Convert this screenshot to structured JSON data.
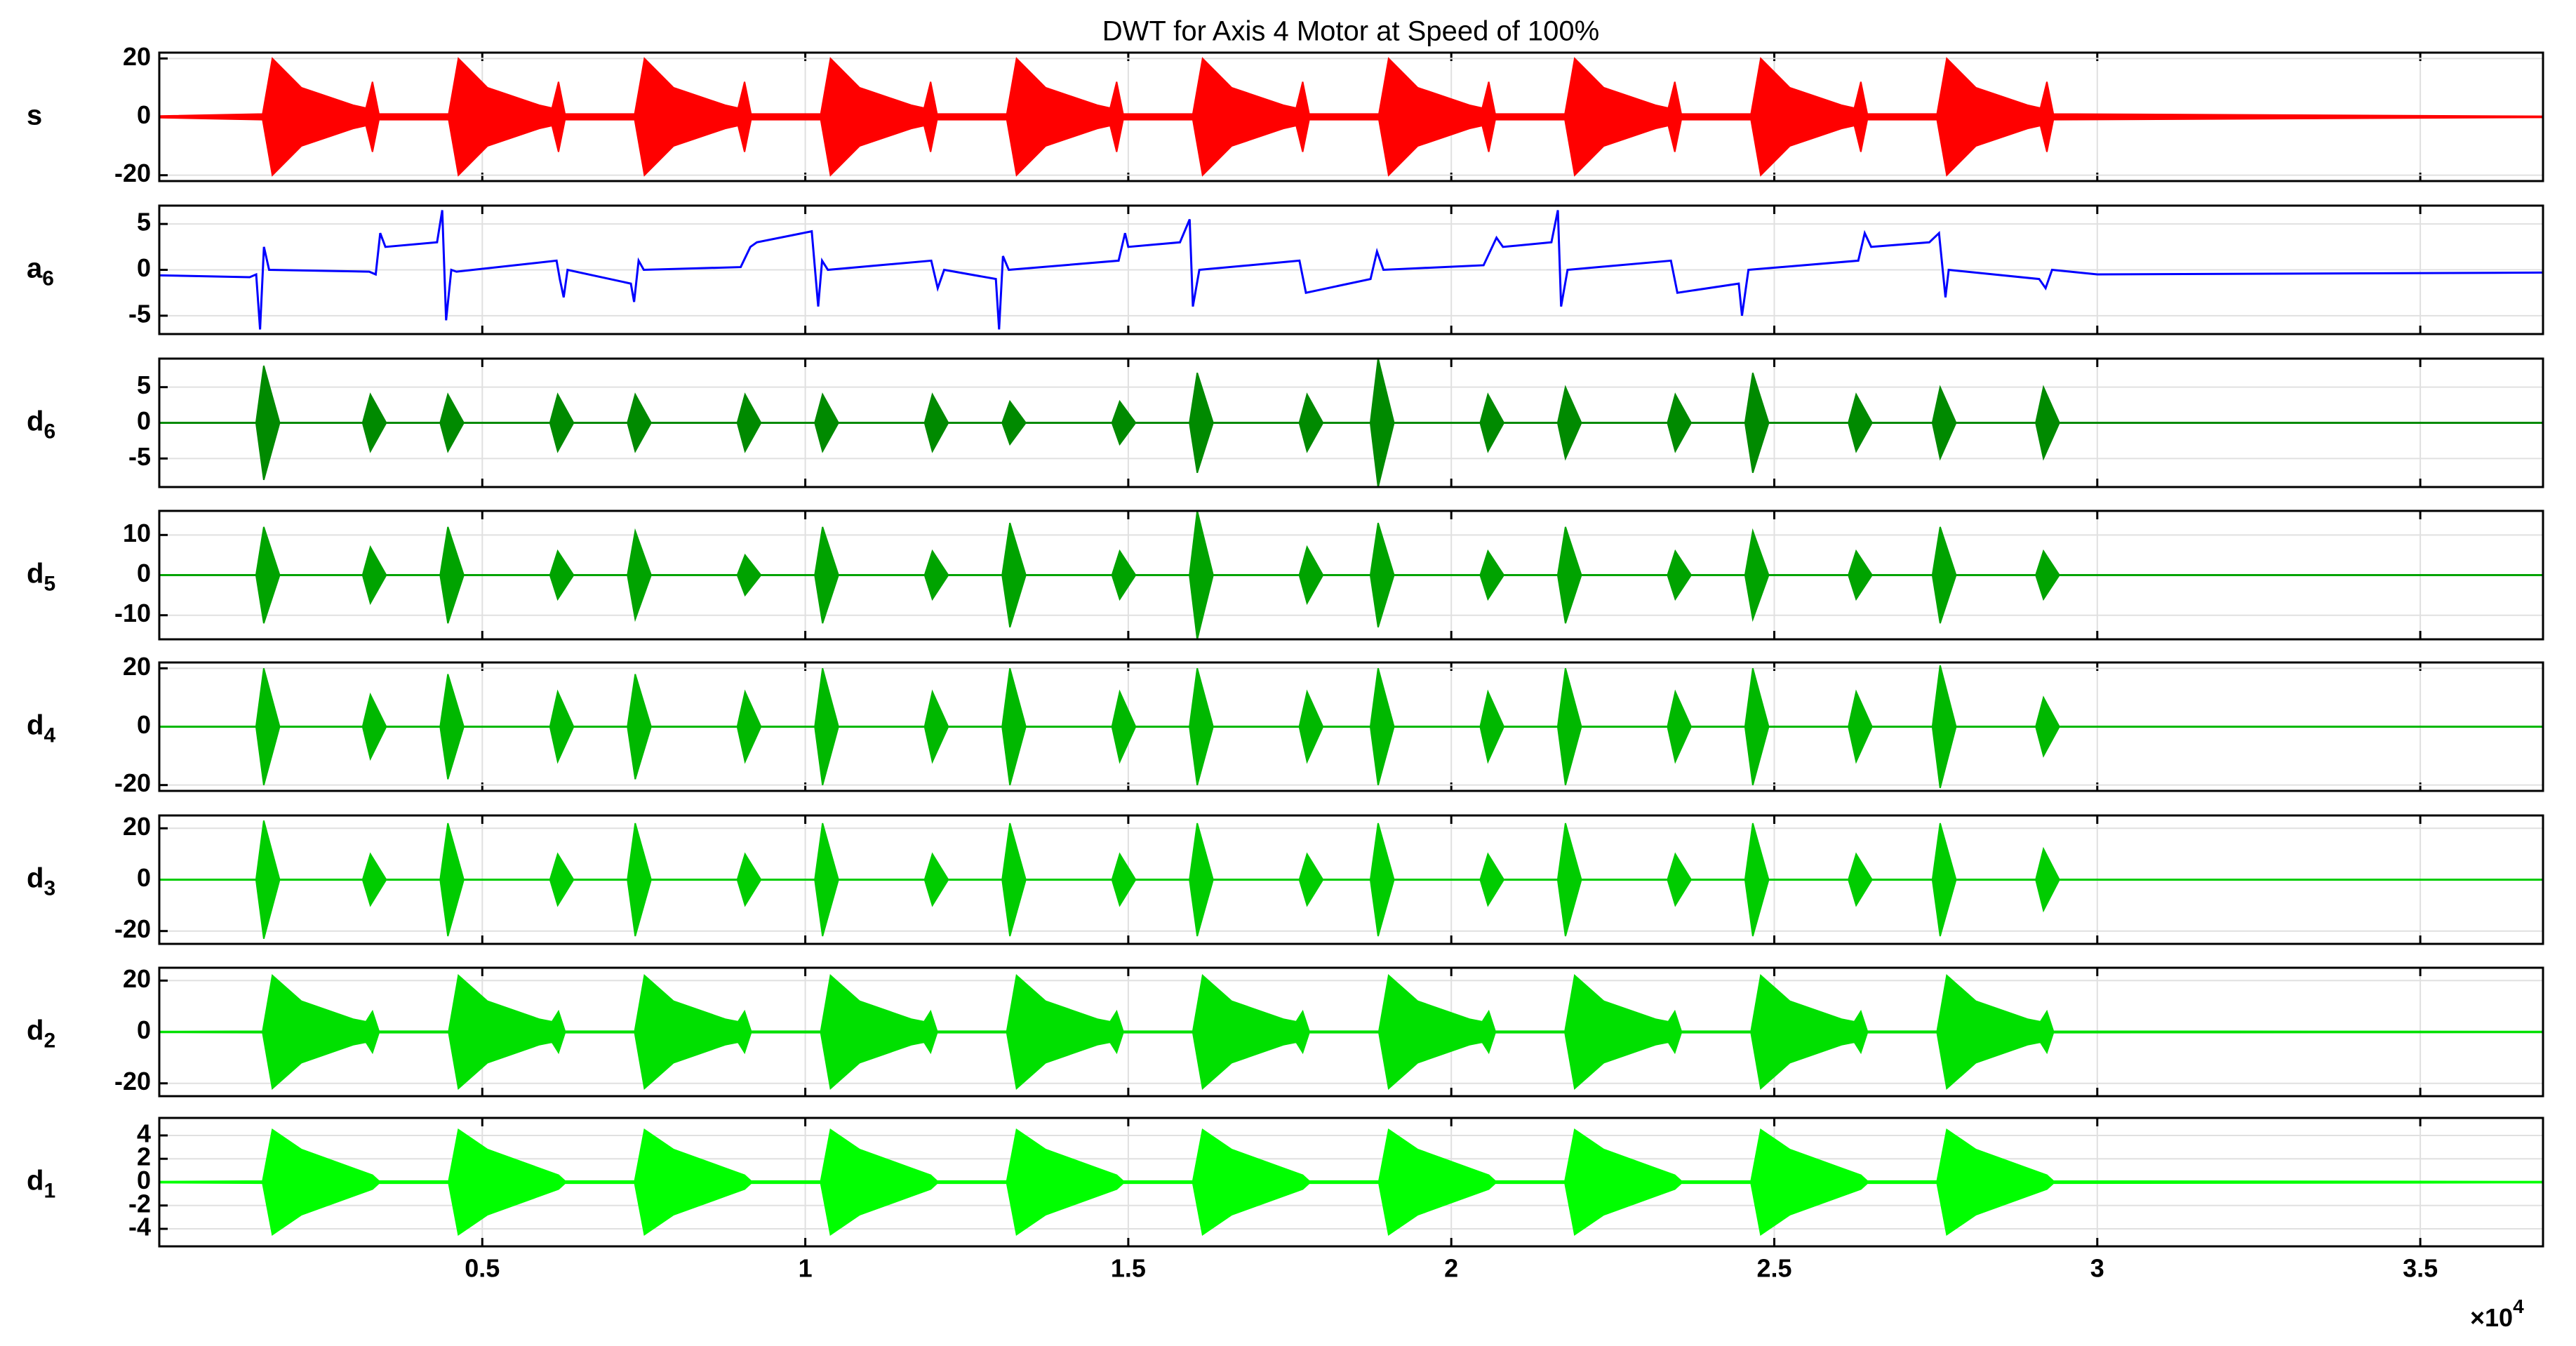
{
  "chart_data": {
    "type": "panels",
    "title": "DWT for Axis 4 Motor at Speed of 100%",
    "grid": true,
    "xlim": [
      0,
      36900
    ],
    "xticks": [
      {
        "value": 5000,
        "label": "0.5"
      },
      {
        "value": 10000,
        "label": "1"
      },
      {
        "value": 15000,
        "label": "1.5"
      },
      {
        "value": 20000,
        "label": "2"
      },
      {
        "value": 25000,
        "label": "2.5"
      },
      {
        "value": 30000,
        "label": "3"
      },
      {
        "value": 35000,
        "label": "3.5"
      }
    ],
    "x_multiplier": "×10",
    "x_multiplier_power": "4",
    "panels": [
      {
        "type": "band",
        "ylabel": "s",
        "color": "#ff0000",
        "ylim": [
          -22,
          22
        ],
        "yticks": [
          -20,
          0,
          20
        ],
        "x": [
          0,
          1600,
          1750,
          2200,
          3000,
          3200,
          3300,
          3400,
          4480,
          4630,
          5080,
          5880,
          6080,
          6180,
          6280,
          7360,
          7510,
          7960,
          8760,
          8960,
          9060,
          9160,
          10240,
          10390,
          10840,
          11640,
          11840,
          11940,
          12040,
          13120,
          13270,
          13720,
          14520,
          14720,
          14820,
          14920,
          16000,
          16150,
          16600,
          17400,
          17600,
          17700,
          17800,
          18880,
          19030,
          19480,
          20280,
          20480,
          20580,
          20680,
          21760,
          21910,
          22360,
          23160,
          23360,
          23460,
          23560,
          24640,
          24790,
          25240,
          26040,
          26240,
          26340,
          26440,
          27520,
          27670,
          28120,
          28920,
          29120,
          29220,
          29320,
          36900
        ],
        "values": [
          0.3,
          1,
          20,
          10,
          4,
          3,
          12,
          1,
          1,
          20,
          10,
          4,
          3,
          12,
          1,
          1,
          20,
          10,
          4,
          3,
          12,
          1,
          1,
          20,
          10,
          4,
          3,
          12,
          1,
          1,
          20,
          10,
          4,
          3,
          12,
          1,
          1,
          20,
          10,
          4,
          3,
          12,
          1,
          1,
          20,
          10,
          4,
          3,
          12,
          1,
          1,
          20,
          10,
          4,
          3,
          12,
          1,
          1,
          20,
          10,
          4,
          3,
          12,
          1,
          1,
          20,
          10,
          4,
          3,
          12,
          1,
          0.2
        ]
      },
      {
        "type": "line",
        "ylabel": "a",
        "ylabel_sub": "6",
        "color": "#0000ff",
        "ylim": [
          -7,
          7
        ],
        "yticks": [
          -5,
          0,
          5
        ],
        "x": [
          0,
          1400,
          1500,
          1560,
          1620,
          1700,
          3250,
          3350,
          3420,
          3500,
          4300,
          4380,
          4440,
          4520,
          4600,
          6150,
          6200,
          6260,
          6320,
          7300,
          7350,
          7420,
          7500,
          9000,
          9150,
          9250,
          10100,
          10200,
          10260,
          10350,
          11950,
          12050,
          12150,
          12950,
          13000,
          13060,
          13150,
          14850,
          14950,
          15000,
          15800,
          15950,
          16000,
          16100,
          17650,
          17750,
          18750,
          18850,
          18950,
          20500,
          20700,
          20800,
          21550,
          21650,
          21700,
          21800,
          23400,
          23500,
          24450,
          24500,
          24600,
          26300,
          26400,
          26500,
          27400,
          27550,
          27650,
          27700,
          29100,
          29200,
          29300,
          30000,
          36900
        ],
        "values": [
          -0.6,
          -0.8,
          -0.5,
          -6.5,
          2.5,
          0,
          -0.2,
          -0.5,
          4,
          2.5,
          3,
          6.5,
          -5.5,
          0,
          -0.2,
          1,
          -1,
          -3,
          0,
          -1.5,
          -3.5,
          1,
          0,
          0.3,
          2.5,
          3,
          4.2,
          -4,
          1,
          0,
          1,
          -2,
          0,
          -1,
          -6.5,
          1.5,
          0,
          1,
          4,
          2.5,
          3,
          5.5,
          -4,
          0,
          1,
          -2.5,
          -1,
          2,
          0,
          0.5,
          3.5,
          2.5,
          3,
          6.5,
          -4,
          0,
          1,
          -2.5,
          -1.5,
          -5,
          0,
          1,
          4,
          2.5,
          3,
          4,
          -3,
          0,
          -1,
          -2,
          0,
          -0.5,
          -0.3
        ]
      },
      {
        "type": "spikes",
        "ylabel": "d",
        "ylabel_sub": "6",
        "color": "#008a00",
        "ylim": [
          -9,
          9
        ],
        "yticks": [
          -5,
          0,
          5
        ],
        "x": [
          1650,
          3300,
          4500,
          6200,
          7400,
          9100,
          10300,
          12000,
          13200,
          14900,
          16100,
          17800,
          18900,
          20600,
          21800,
          23500,
          24700,
          26300,
          27600,
          29200
        ],
        "values": [
          8,
          4,
          4,
          4,
          4,
          4,
          4,
          4,
          3,
          3,
          7,
          4,
          9,
          4,
          5,
          4,
          7,
          4,
          5,
          5
        ]
      },
      {
        "type": "spikes",
        "ylabel": "d",
        "ylabel_sub": "5",
        "color": "#00a300",
        "ylim": [
          -16,
          16
        ],
        "yticks": [
          -10,
          0,
          10
        ],
        "x": [
          1650,
          3300,
          4500,
          6200,
          7400,
          9100,
          10300,
          12000,
          13200,
          14900,
          16100,
          17800,
          18900,
          20600,
          21800,
          23500,
          24700,
          26300,
          27600,
          29200
        ],
        "values": [
          12,
          7,
          12,
          6,
          11,
          5,
          12,
          6,
          13,
          6,
          16,
          7,
          13,
          6,
          12,
          6,
          11,
          6,
          12,
          6
        ]
      },
      {
        "type": "spikes",
        "ylabel": "d",
        "ylabel_sub": "4",
        "color": "#00b800",
        "ylim": [
          -22,
          22
        ],
        "yticks": [
          -20,
          0,
          20
        ],
        "x": [
          1650,
          3300,
          4500,
          6200,
          7400,
          9100,
          10300,
          12000,
          13200,
          14900,
          16100,
          17800,
          18900,
          20600,
          21800,
          23500,
          24700,
          26300,
          27600,
          29200
        ],
        "values": [
          20,
          11,
          18,
          12,
          18,
          12,
          20,
          12,
          20,
          12,
          20,
          12,
          20,
          12,
          20,
          12,
          20,
          12,
          21,
          10
        ]
      },
      {
        "type": "spikes",
        "ylabel": "d",
        "ylabel_sub": "3",
        "color": "#00cc00",
        "ylim": [
          -25,
          25
        ],
        "yticks": [
          -20,
          0,
          20
        ],
        "x": [
          1650,
          3300,
          4500,
          6200,
          7400,
          9100,
          10300,
          12000,
          13200,
          14900,
          16100,
          17800,
          18900,
          20600,
          21800,
          23500,
          24700,
          26300,
          27600,
          29200
        ],
        "values": [
          23,
          10,
          22,
          10,
          22,
          10,
          22,
          10,
          22,
          10,
          22,
          10,
          22,
          10,
          22,
          10,
          22,
          10,
          22,
          12
        ]
      },
      {
        "type": "band",
        "ylabel": "d",
        "ylabel_sub": "2",
        "color": "#00e000",
        "ylim": [
          -25,
          25
        ],
        "yticks": [
          -20,
          0,
          20
        ],
        "x": [
          0,
          1600,
          1750,
          2200,
          3000,
          3200,
          3300,
          3400,
          4480,
          4630,
          5080,
          5880,
          6080,
          6180,
          6280,
          7360,
          7510,
          7960,
          8760,
          8960,
          9060,
          9160,
          10240,
          10390,
          10840,
          11640,
          11840,
          11940,
          12040,
          13120,
          13270,
          13720,
          14520,
          14720,
          14820,
          14920,
          16000,
          16150,
          16600,
          17400,
          17600,
          17700,
          17800,
          18880,
          19030,
          19480,
          20280,
          20480,
          20580,
          20680,
          21760,
          21910,
          22360,
          23160,
          23360,
          23460,
          23560,
          24640,
          24790,
          25240,
          26040,
          26240,
          26340,
          26440,
          27520,
          27670,
          28120,
          28920,
          29120,
          29220,
          29320,
          36900
        ],
        "values": [
          0.2,
          0.3,
          22,
          12,
          5,
          4,
          8,
          0.3,
          0.3,
          22,
          12,
          5,
          4,
          8,
          0.3,
          0.3,
          22,
          12,
          5,
          4,
          8,
          0.3,
          0.3,
          22,
          12,
          5,
          4,
          8,
          0.3,
          0.3,
          22,
          12,
          5,
          4,
          8,
          0.3,
          0.3,
          22,
          12,
          5,
          4,
          8,
          0.3,
          0.3,
          22,
          12,
          5,
          4,
          8,
          0.3,
          0.3,
          22,
          12,
          5,
          4,
          8,
          0.3,
          0.3,
          22,
          12,
          5,
          4,
          8,
          0.3,
          0.3,
          22,
          12,
          5,
          4,
          8,
          0.3,
          0.2
        ]
      },
      {
        "type": "band",
        "ylabel": "d",
        "ylabel_sub": "1",
        "color": "#00ff00",
        "ylim": [
          -5.5,
          5.5
        ],
        "yticks": [
          -4,
          -2,
          0,
          2,
          4
        ],
        "x": [
          0,
          1600,
          1750,
          2200,
          3000,
          3200,
          3300,
          3400,
          4480,
          4630,
          5080,
          5880,
          6080,
          6180,
          6280,
          7360,
          7510,
          7960,
          8760,
          8960,
          9060,
          9160,
          10240,
          10390,
          10840,
          11640,
          11840,
          11940,
          12040,
          13120,
          13270,
          13720,
          14520,
          14720,
          14820,
          14920,
          16000,
          16150,
          16600,
          17400,
          17600,
          17700,
          17800,
          18880,
          19030,
          19480,
          20280,
          20480,
          20580,
          20680,
          21760,
          21910,
          22360,
          23160,
          23360,
          23460,
          23560,
          24640,
          24790,
          25240,
          26040,
          26240,
          26340,
          26440,
          27520,
          27670,
          28120,
          28920,
          29120,
          29220,
          29320,
          36900
        ],
        "values": [
          0.05,
          0.1,
          4.5,
          2.8,
          1.2,
          0.8,
          0.6,
          0.1,
          0.1,
          4.5,
          2.8,
          1.2,
          0.8,
          0.6,
          0.1,
          0.1,
          4.5,
          2.8,
          1.2,
          0.8,
          0.6,
          0.1,
          0.1,
          4.5,
          2.8,
          1.2,
          0.8,
          0.6,
          0.1,
          0.1,
          4.5,
          2.8,
          1.2,
          0.8,
          0.6,
          0.1,
          0.1,
          4.5,
          2.8,
          1.2,
          0.8,
          0.6,
          0.1,
          0.1,
          4.5,
          2.8,
          1.2,
          0.8,
          0.6,
          0.1,
          0.1,
          4.5,
          2.8,
          1.2,
          0.8,
          0.6,
          0.1,
          0.1,
          4.5,
          2.8,
          1.2,
          0.8,
          0.6,
          0.1,
          0.1,
          4.5,
          2.8,
          1.2,
          0.8,
          0.6,
          0.1,
          0.05
        ]
      }
    ]
  }
}
